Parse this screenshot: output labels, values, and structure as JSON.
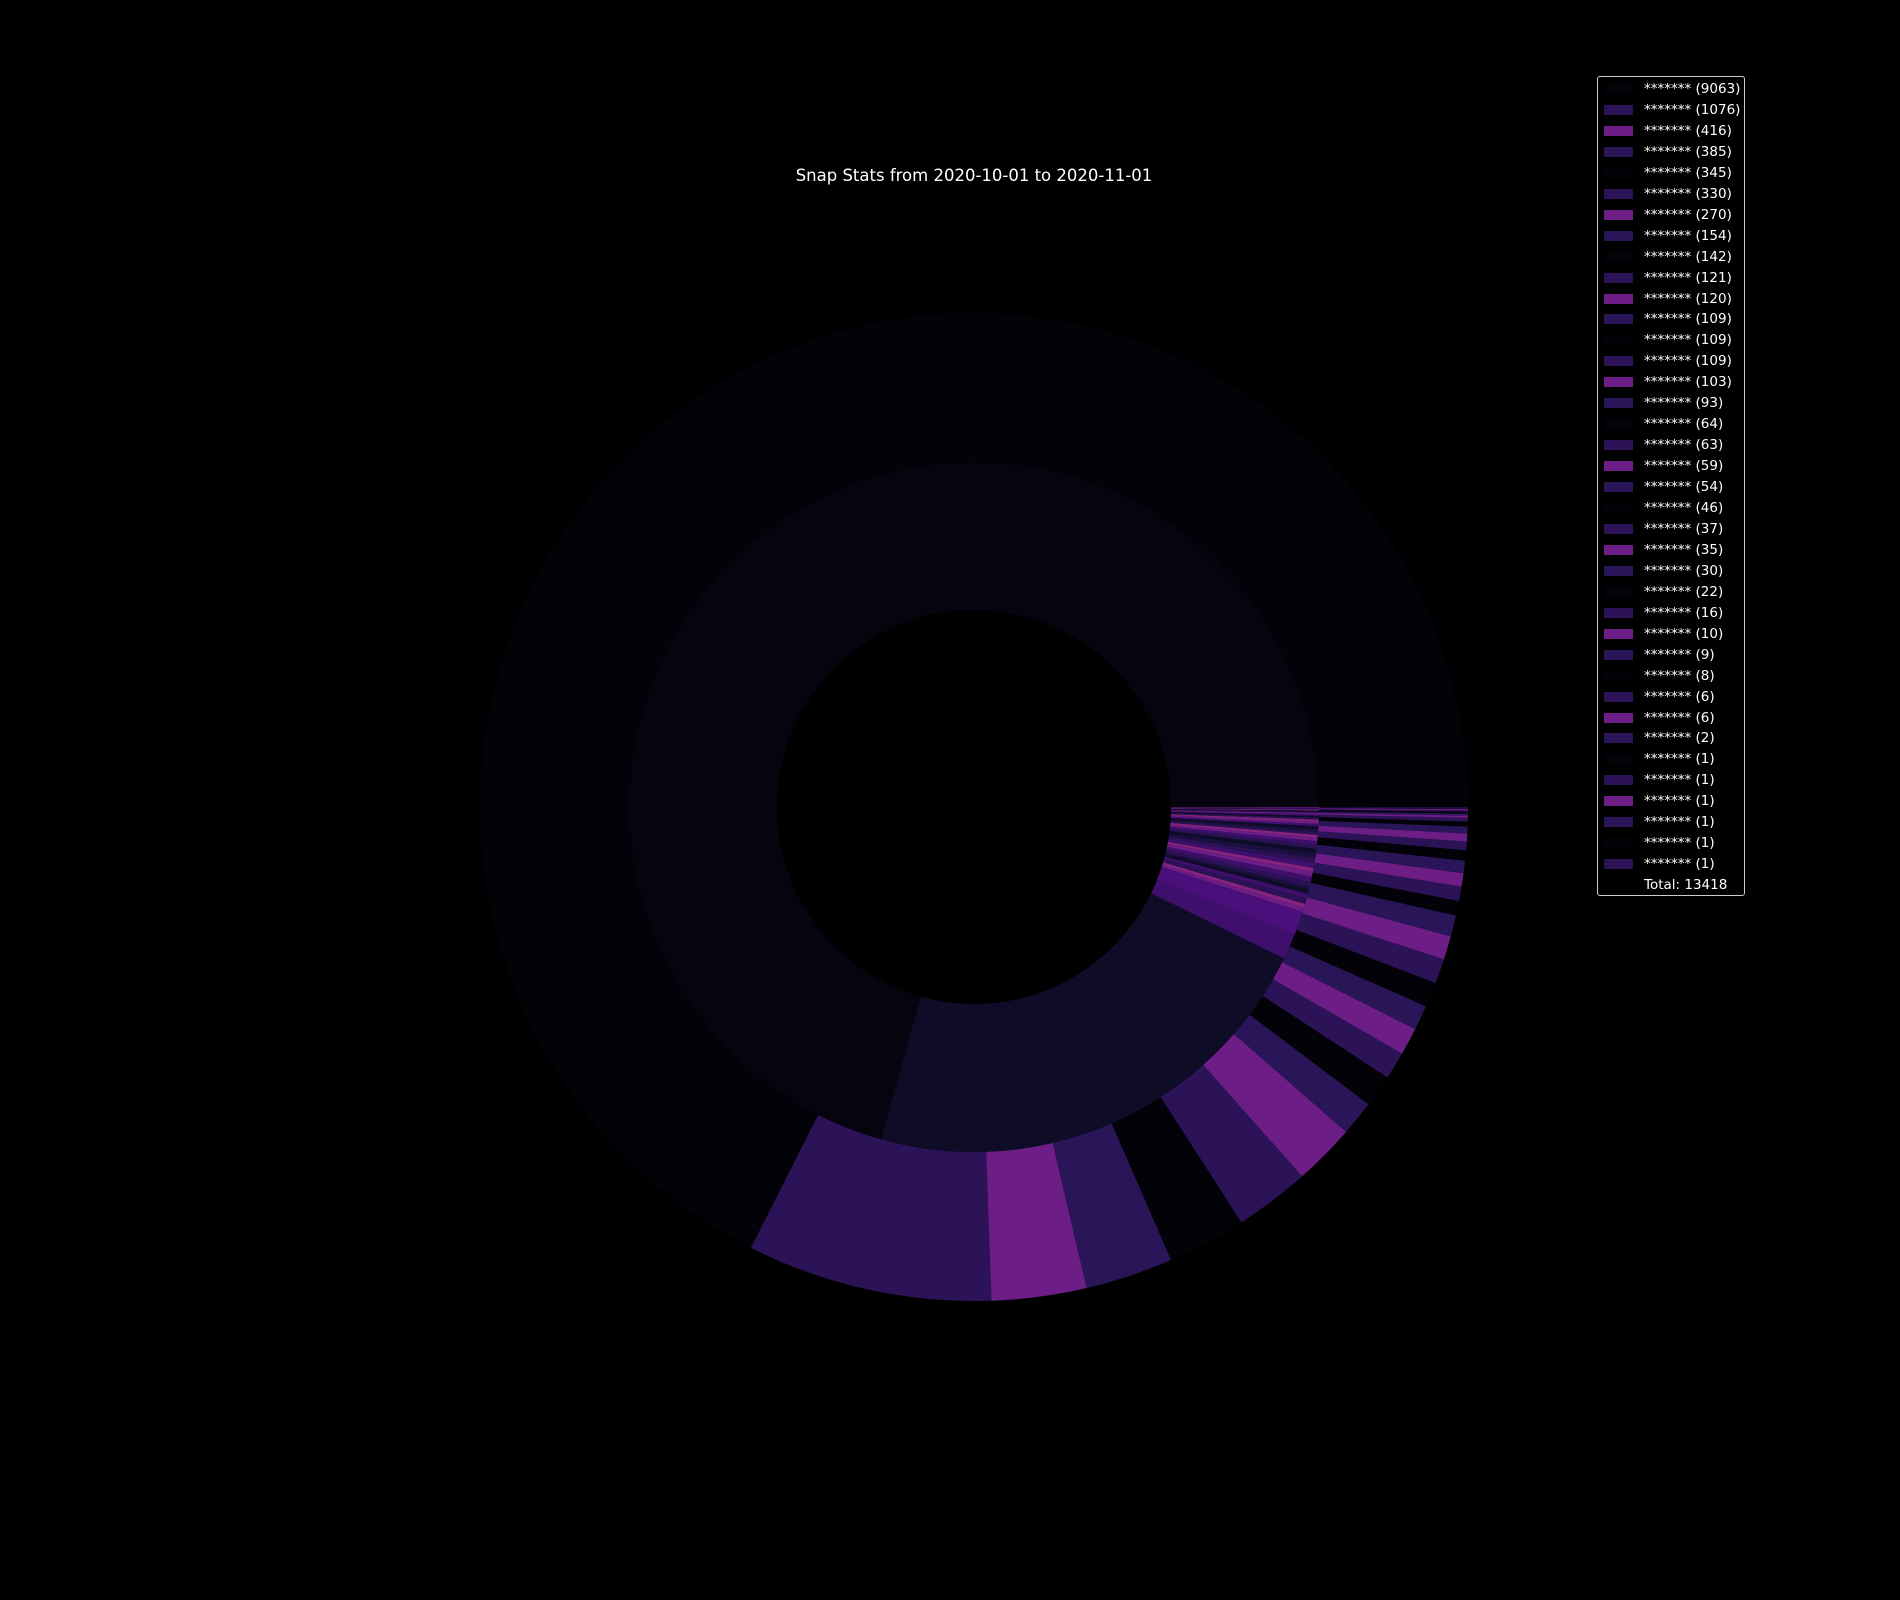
{
  "chart_data": {
    "type": "pie",
    "variant": "nested-donut",
    "title": "Snap Stats from 2020-10-01 to 2020-11-01",
    "legend_placement": "top-right",
    "total_label": "Total: 13418",
    "colors": {
      "background": "#000000",
      "inner_major": "#0e0c26",
      "outer_major": "#030208",
      "purple_dark": "#2b1257",
      "purple_mid": "#3f0f6e",
      "magenta": "#6c1e86",
      "legend_border": "#cccccc"
    },
    "legend": [
      {
        "label": "******* (9063)",
        "value": 9063,
        "color": "#030208"
      },
      {
        "label": "******* (1076)",
        "value": 1076,
        "color": "#2c1358"
      },
      {
        "label": "******* (416)",
        "value": 416,
        "color": "#6c1e86"
      },
      {
        "label": "******* (385)",
        "value": 385,
        "color": "#2a1558"
      },
      {
        "label": "******* (345)",
        "value": 345,
        "color": "#030208"
      },
      {
        "label": "******* (330)",
        "value": 330,
        "color": "#2c1358"
      },
      {
        "label": "******* (270)",
        "value": 270,
        "color": "#6c1e86"
      },
      {
        "label": "******* (154)",
        "value": 154,
        "color": "#2a1558"
      },
      {
        "label": "******* (142)",
        "value": 142,
        "color": "#030208"
      },
      {
        "label": "******* (121)",
        "value": 121,
        "color": "#2c1358"
      },
      {
        "label": "******* (120)",
        "value": 120,
        "color": "#6c1e86"
      },
      {
        "label": "******* (109)",
        "value": 109,
        "color": "#2a1558"
      },
      {
        "label": "******* (109)",
        "value": 109,
        "color": "#030208"
      },
      {
        "label": "******* (109)",
        "value": 109,
        "color": "#2c1358"
      },
      {
        "label": "******* (103)",
        "value": 103,
        "color": "#6c1e86"
      },
      {
        "label": "******* (93)",
        "value": 93,
        "color": "#2a1558"
      },
      {
        "label": "******* (64)",
        "value": 64,
        "color": "#030208"
      },
      {
        "label": "******* (63)",
        "value": 63,
        "color": "#2c1358"
      },
      {
        "label": "******* (59)",
        "value": 59,
        "color": "#6c1e86"
      },
      {
        "label": "******* (54)",
        "value": 54,
        "color": "#2a1558"
      },
      {
        "label": "******* (46)",
        "value": 46,
        "color": "#030208"
      },
      {
        "label": "******* (37)",
        "value": 37,
        "color": "#2c1358"
      },
      {
        "label": "******* (35)",
        "value": 35,
        "color": "#6c1e86"
      },
      {
        "label": "******* (30)",
        "value": 30,
        "color": "#2a1558"
      },
      {
        "label": "******* (22)",
        "value": 22,
        "color": "#030208"
      },
      {
        "label": "******* (16)",
        "value": 16,
        "color": "#2c1358"
      },
      {
        "label": "******* (10)",
        "value": 10,
        "color": "#6c1e86"
      },
      {
        "label": "******* (9)",
        "value": 9,
        "color": "#2a1558"
      },
      {
        "label": "******* (8)",
        "value": 8,
        "color": "#030208"
      },
      {
        "label": "******* (6)",
        "value": 6,
        "color": "#2c1358"
      },
      {
        "label": "******* (6)",
        "value": 6,
        "color": "#6c1e86"
      },
      {
        "label": "******* (2)",
        "value": 2,
        "color": "#2a1558"
      },
      {
        "label": "******* (1)",
        "value": 1,
        "color": "#030208"
      },
      {
        "label": "******* (1)",
        "value": 1,
        "color": "#2c1358"
      },
      {
        "label": "******* (1)",
        "value": 1,
        "color": "#6c1e86"
      },
      {
        "label": "******* (1)",
        "value": 1,
        "color": "#2a1558"
      },
      {
        "label": "******* (1)",
        "value": 1,
        "color": "#030208"
      },
      {
        "label": "******* (1)",
        "value": 1,
        "color": "#2c1358"
      }
    ],
    "inner_ring": [
      {
        "value": 9063,
        "color": "#05040f"
      },
      {
        "value": 2837,
        "color": "#0e0c26"
      },
      {
        "value": 154,
        "color": "#3f0f6e"
      },
      {
        "value": 142,
        "color": "#4a0f7a"
      },
      {
        "value": 26,
        "color": "#6c1e86"
      },
      {
        "value": 24,
        "color": "#86257f"
      },
      {
        "value": 36,
        "color": "#2b1257"
      },
      {
        "value": 26,
        "color": "#3f0f6e"
      },
      {
        "value": 24,
        "color": "#0e0c26"
      },
      {
        "value": 18,
        "color": "#1a1040"
      },
      {
        "value": 30,
        "color": "#2b1257"
      },
      {
        "value": 32,
        "color": "#3f0f6e"
      },
      {
        "value": 30,
        "color": "#6c1e86"
      },
      {
        "value": 22,
        "color": "#86257f"
      },
      {
        "value": 30,
        "color": "#3f0f6e"
      },
      {
        "value": 28,
        "color": "#2b1257"
      },
      {
        "value": 30,
        "color": "#1a1040"
      },
      {
        "value": 26,
        "color": "#0e0c26"
      },
      {
        "value": 24,
        "color": "#2b1257"
      },
      {
        "value": 22,
        "color": "#3f0f6e"
      },
      {
        "value": 20,
        "color": "#6c1e86"
      },
      {
        "value": 18,
        "color": "#86257f"
      },
      {
        "value": 18,
        "color": "#2b1257"
      },
      {
        "value": 16,
        "color": "#1a1040"
      },
      {
        "value": 16,
        "color": "#0e0c26"
      },
      {
        "value": 14,
        "color": "#3f0f6e"
      },
      {
        "value": 14,
        "color": "#6c1e86"
      },
      {
        "value": 12,
        "color": "#86257f"
      },
      {
        "value": 12,
        "color": "#2b1257"
      },
      {
        "value": 10,
        "color": "#0e0c26"
      },
      {
        "value": 10,
        "color": "#3f0f6e"
      },
      {
        "value": 8,
        "color": "#6c1e86"
      },
      {
        "value": 8,
        "color": "#2b1257"
      },
      {
        "value": 6,
        "color": "#0e0c26"
      },
      {
        "value": 6,
        "color": "#86257f"
      },
      {
        "value": 5,
        "color": "#3f0f6e"
      },
      {
        "value": 4,
        "color": "#2b1257"
      },
      {
        "value": 3,
        "color": "#6c1e86"
      },
      {
        "value": 2,
        "color": "#3f0f6e"
      },
      {
        "value": 1,
        "color": "#86257f"
      }
    ]
  }
}
